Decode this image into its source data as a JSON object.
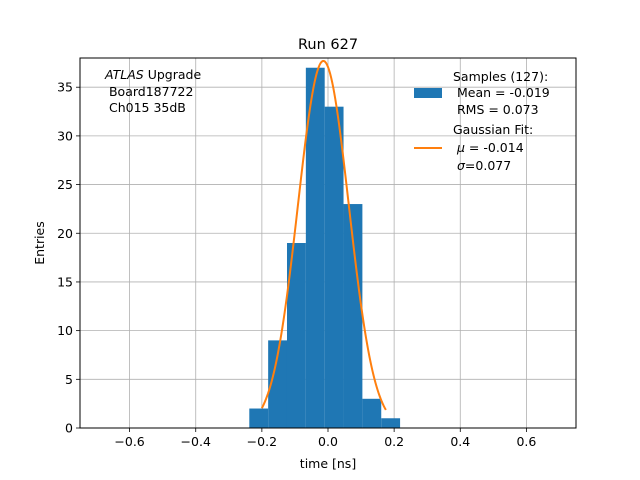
{
  "chart_data": {
    "type": "bar",
    "title": "Run 627",
    "xlabel": "time [ns]",
    "ylabel": "Entries",
    "xlim": [
      -0.75,
      0.75
    ],
    "ylim": [
      0,
      38
    ],
    "xticks": [
      -0.6,
      -0.4,
      -0.2,
      0.0,
      0.2,
      0.4,
      0.6
    ],
    "xtick_labels": [
      "−0.6",
      "−0.4",
      "−0.2",
      "0.0",
      "0.2",
      "0.4",
      "0.6"
    ],
    "yticks": [
      0,
      5,
      10,
      15,
      20,
      25,
      30,
      35
    ],
    "ytick_labels": [
      "0",
      "5",
      "10",
      "15",
      "20",
      "25",
      "30",
      "35"
    ],
    "grid": true,
    "bins": {
      "edges": [
        -0.238,
        -0.181,
        -0.124,
        -0.067,
        -0.01,
        0.047,
        0.104,
        0.161,
        0.218
      ],
      "counts": [
        2,
        9,
        19,
        37,
        33,
        23,
        3,
        1
      ],
      "color": "#1f77b4"
    },
    "gaussian_fit": {
      "mu": -0.014,
      "sigma": 0.077,
      "amplitude": 37.7,
      "x_range": [
        -0.2,
        0.175
      ],
      "color": "#ff7f0e"
    },
    "annotation": {
      "line1_italic": "ATLAS",
      "line1_rest": " Upgrade",
      "line2": " Board187722",
      "line3": " Ch015 35dB"
    },
    "legend": {
      "position": "top-right",
      "samples_line1": "Samples (127):",
      "samples_line2": " Mean = -0.019",
      "samples_line3": " RMS = 0.073",
      "fit_line1": "Gaussian Fit:",
      "fit_mu_label": "μ",
      "fit_mu_value": " = -0.014",
      "fit_sigma_label": "σ",
      "fit_sigma_value": "=0.077"
    }
  }
}
